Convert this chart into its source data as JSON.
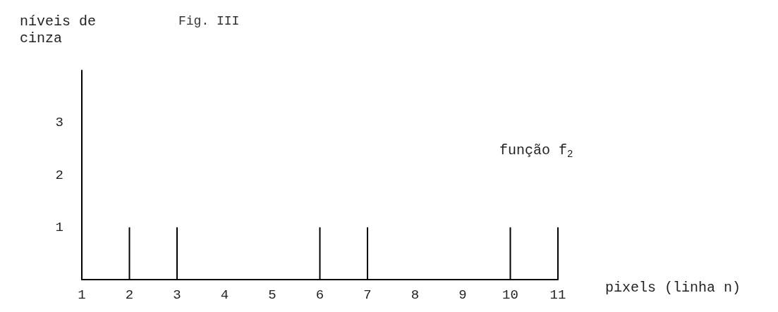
{
  "chart_data": {
    "type": "bar",
    "title": "Fig. III",
    "xlabel": "pixels (linha n)",
    "ylabel": "níveis de\ncinza",
    "annotations": [
      "função f$_{2}$"
    ],
    "x": [
      1,
      2,
      3,
      4,
      5,
      6,
      7,
      8,
      9,
      10,
      11
    ],
    "values": [
      0,
      1,
      1,
      0,
      0,
      1,
      1,
      0,
      0,
      1,
      1
    ],
    "color": "#000000",
    "xlim": [
      1,
      11
    ],
    "xticks": [
      1,
      2,
      3,
      4,
      5,
      6,
      7,
      8,
      9,
      10,
      11
    ],
    "ylim": [
      0,
      4
    ],
    "yticks": [
      1,
      2,
      3
    ],
    "grid": false
  }
}
